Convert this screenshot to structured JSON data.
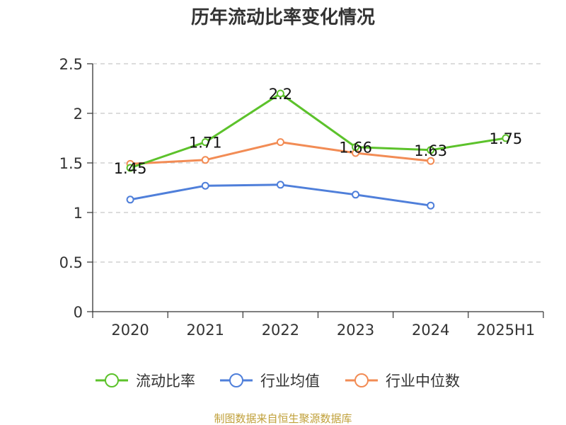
{
  "chart_data": {
    "type": "line",
    "title": "历年流动比率变化情况",
    "categories": [
      "2020",
      "2021",
      "2022",
      "2023",
      "2024",
      "2025H1"
    ],
    "ylim": [
      0,
      2.5
    ],
    "yticks": [
      "0",
      "0.5",
      "1",
      "1.5",
      "2",
      "2.5"
    ],
    "grid": true,
    "legend_position": "bottom",
    "series": [
      {
        "name": "流动比率",
        "color": "#5cc22b",
        "values": [
          1.45,
          1.71,
          2.2,
          1.66,
          1.63,
          1.75
        ],
        "labels": [
          "1.45",
          "1.71",
          "2.2",
          "1.66",
          "1.63",
          "1.75"
        ]
      },
      {
        "name": "行业均值",
        "color": "#4f7fda",
        "values": [
          1.13,
          1.27,
          1.28,
          1.18,
          1.07,
          null
        ]
      },
      {
        "name": "行业中位数",
        "color": "#f28c55",
        "values": [
          1.49,
          1.53,
          1.71,
          1.6,
          1.52,
          null
        ]
      }
    ]
  },
  "source": "制图数据来自恒生聚源数据库"
}
